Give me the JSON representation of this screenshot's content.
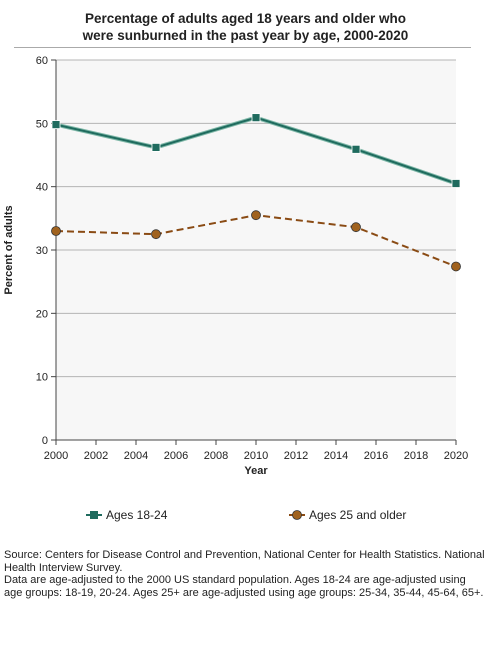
{
  "title_line1": "Percentage of adults aged 18 years and older who",
  "title_line2": "were sunburned in the past year by age, 2000-2020",
  "footnote": {
    "source": "Source: Centers for Disease Control and Prevention, National Center for Health Statistics. National Health Interview Survey.",
    "note": "Data are age-adjusted to the 2000 US standard population. Ages 18-24 are age-adjusted using age groups: 18-19, 20-24. Ages 25+ are age-adjusted using age groups: 25-34, 35-44, 45-64, 65+."
  },
  "chart_data": {
    "type": "line",
    "title": "Percentage of adults aged 18 years and older who were sunburned in the past year by age, 2000-2020",
    "xlabel": "Year",
    "ylabel": "Percent of adults",
    "x": [
      2000,
      2005,
      2010,
      2015,
      2020
    ],
    "xlim": [
      2000,
      2020
    ],
    "ylim": [
      0,
      60
    ],
    "xticks": [
      2000,
      2002,
      2004,
      2006,
      2008,
      2010,
      2012,
      2014,
      2016,
      2018,
      2020
    ],
    "yticks": [
      0,
      10,
      20,
      30,
      40,
      50,
      60
    ],
    "grid": "horizontal",
    "legend_position": "bottom",
    "series": [
      {
        "name": "Ages 18-24",
        "values": [
          49.8,
          46.2,
          50.9,
          45.9,
          40.5
        ],
        "color": "#1f6b5e",
        "marker": "square",
        "line": "solid"
      },
      {
        "name": "Ages 25 and older",
        "values": [
          33.0,
          32.5,
          35.5,
          33.6,
          27.4
        ],
        "color": "#8a4b14",
        "marker_fill": "#a0621e",
        "marker": "circle",
        "line": "dashed"
      }
    ]
  }
}
